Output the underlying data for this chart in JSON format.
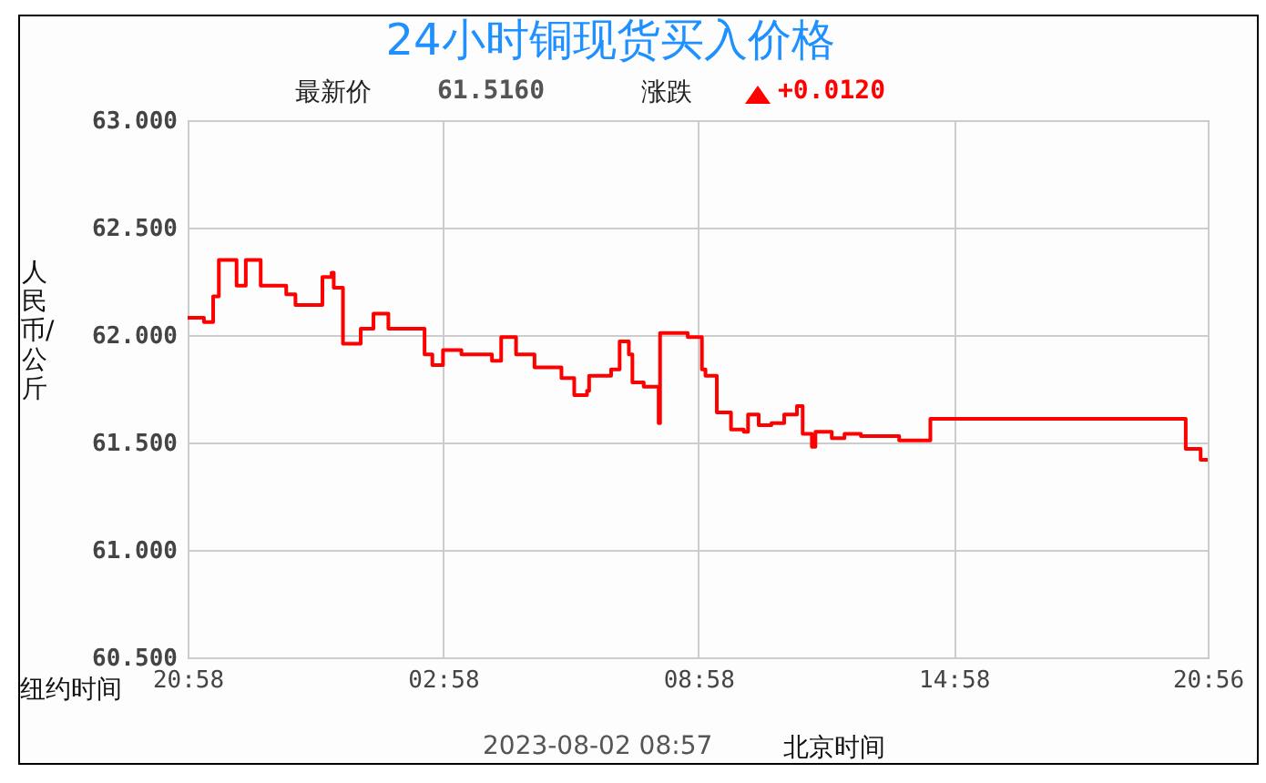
{
  "chart_data": {
    "type": "step",
    "title": "24小时铜现货买入价格",
    "xlabel": "纽约时间",
    "ylabel": "人民币/公斤",
    "annotations": [
      "最新价",
      "61.5160",
      "涨跌",
      "+0.0120",
      "2023-08-02 08:57",
      "北京时间"
    ],
    "x": [
      "2023-08-01T20:58",
      "2023-08-01T21:21",
      "2023-08-01T21:34",
      "2023-08-01T21:42",
      "2023-08-01T22:07",
      "2023-08-01T22:20",
      "2023-08-01T22:41",
      "2023-08-01T23:17",
      "2023-08-01T23:30",
      "2023-08-02T00:08",
      "2023-08-02T00:21",
      "2023-08-02T00:24",
      "2023-08-02T00:37",
      "2023-08-02T01:02",
      "2023-08-02T01:20",
      "2023-08-02T01:41",
      "2023-08-02T02:32",
      "2023-08-02T02:43",
      "2023-08-02T02:58",
      "2023-08-02T03:24",
      "2023-08-02T04:07",
      "2023-08-02T04:20",
      "2023-08-02T04:41",
      "2023-08-02T05:07",
      "2023-08-02T05:45",
      "2023-08-02T06:03",
      "2023-08-02T06:21",
      "2023-08-02T06:24",
      "2023-08-02T06:55",
      "2023-08-02T07:07",
      "2023-08-02T07:20",
      "2023-08-02T07:25",
      "2023-08-02T07:41",
      "2023-08-02T08:02",
      "2023-08-02T08:04",
      "2023-08-02T08:25",
      "2023-08-02T08:43",
      "2023-08-02T09:03",
      "2023-08-02T09:08",
      "2023-08-02T09:21",
      "2023-08-02T09:24",
      "2023-08-02T09:42",
      "2023-08-02T09:44",
      "2023-08-02T10:02",
      "2023-08-02T10:08",
      "2023-08-02T10:23",
      "2023-08-02T10:41",
      "2023-08-02T10:59",
      "2023-08-02T11:17",
      "2023-08-02T11:25",
      "2023-08-02T11:38",
      "2023-08-02T11:43",
      "2023-08-02T12:06",
      "2023-08-02T12:24",
      "2023-08-02T12:47",
      "2023-08-02T13:26",
      "2023-08-02T13:41",
      "2023-08-02T14:20",
      "2023-08-02T14:25",
      "2023-08-02T20:20",
      "2023-08-02T20:25",
      "2023-08-02T20:46",
      "2023-08-02T20:56"
    ],
    "series": [
      {
        "color": "#ff0000",
        "values": [
          62.08,
          62.06,
          62.18,
          62.35,
          62.23,
          62.35,
          62.23,
          62.19,
          62.14,
          62.27,
          62.29,
          62.22,
          61.96,
          62.03,
          62.1,
          62.03,
          61.91,
          61.86,
          61.93,
          61.91,
          61.88,
          61.99,
          61.91,
          61.85,
          61.8,
          61.72,
          61.74,
          61.81,
          61.84,
          61.97,
          61.91,
          61.78,
          61.76,
          61.59,
          62.01,
          62.01,
          61.99,
          61.84,
          61.81,
          61.81,
          61.64,
          61.64,
          61.56,
          61.55,
          61.63,
          61.58,
          61.59,
          61.63,
          61.67,
          61.54,
          61.48,
          61.55,
          61.52,
          61.54,
          61.53,
          61.53,
          61.51,
          61.51,
          61.61,
          61.61,
          61.47,
          61.42,
          61.42
        ]
      }
    ],
    "xlim": [
      "2023-08-01T20:58",
      "2023-08-02T20:56"
    ],
    "xticks": [
      {
        "value": "2023-08-01T20:58",
        "label": "20:58"
      },
      {
        "value": "2023-08-02T02:58",
        "label": "02:58"
      },
      {
        "value": "2023-08-02T08:58",
        "label": "08:58"
      },
      {
        "value": "2023-08-02T14:58",
        "label": "14:58"
      },
      {
        "value": "2023-08-02T20:56",
        "label": "20:56"
      }
    ],
    "ylim": [
      60.5,
      63
    ],
    "yticks": [
      {
        "value": 60.5,
        "label": "60.500"
      },
      {
        "value": 61,
        "label": "61.000"
      },
      {
        "value": 61.5,
        "label": "61.500"
      },
      {
        "value": 62,
        "label": "62.000"
      },
      {
        "value": 62.5,
        "label": "62.500"
      },
      {
        "value": 63,
        "label": "63.000"
      }
    ],
    "grid": true
  }
}
